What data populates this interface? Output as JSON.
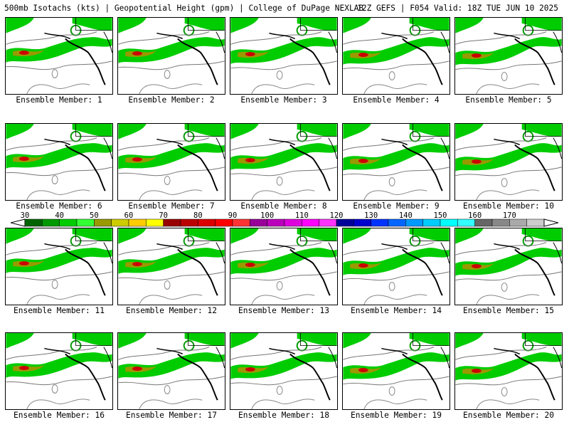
{
  "header": {
    "left": "500mb Isotachs (kts) | Geopotential Height (gpm) | College of DuPage NEXLAB",
    "right": "12Z GEFS | F054 Valid: 18Z TUE JUN 10 2025"
  },
  "panels": [
    {
      "label": "Ensemble Member: 1"
    },
    {
      "label": "Ensemble Member: 2"
    },
    {
      "label": "Ensemble Member: 3"
    },
    {
      "label": "Ensemble Member: 4"
    },
    {
      "label": "Ensemble Member: 5"
    },
    {
      "label": "Ensemble Member: 6"
    },
    {
      "label": "Ensemble Member: 7"
    },
    {
      "label": "Ensemble Member: 8"
    },
    {
      "label": "Ensemble Member: 9"
    },
    {
      "label": "Ensemble Member: 10"
    },
    {
      "label": "Ensemble Member: 11"
    },
    {
      "label": "Ensemble Member: 12"
    },
    {
      "label": "Ensemble Member: 13"
    },
    {
      "label": "Ensemble Member: 14"
    },
    {
      "label": "Ensemble Member: 15"
    },
    {
      "label": "Ensemble Member: 16"
    },
    {
      "label": "Ensemble Member: 17"
    },
    {
      "label": "Ensemble Member: 18"
    },
    {
      "label": "Ensemble Member: 19"
    },
    {
      "label": "Ensemble Member: 20"
    }
  ],
  "colorbar": {
    "labels": [
      "30",
      "40",
      "50",
      "60",
      "70",
      "80",
      "90",
      "100",
      "110",
      "120",
      "130",
      "140",
      "150",
      "160",
      "170"
    ],
    "colors": [
      "#006400",
      "#009900",
      "#00cc00",
      "#33ff33",
      "#999900",
      "#cccc00",
      "#ffcc00",
      "#ffff00",
      "#990000",
      "#bb0000",
      "#dd0000",
      "#ff0000",
      "#ff3333",
      "#990099",
      "#bb00bb",
      "#dd00dd",
      "#ff00ff",
      "#ff33ff",
      "#000099",
      "#0000cc",
      "#0033ff",
      "#0066ff",
      "#0099ff",
      "#00ccff",
      "#00ffff",
      "#33ffff",
      "#666666",
      "#888888",
      "#aaaaaa",
      "#cccccc"
    ]
  }
}
